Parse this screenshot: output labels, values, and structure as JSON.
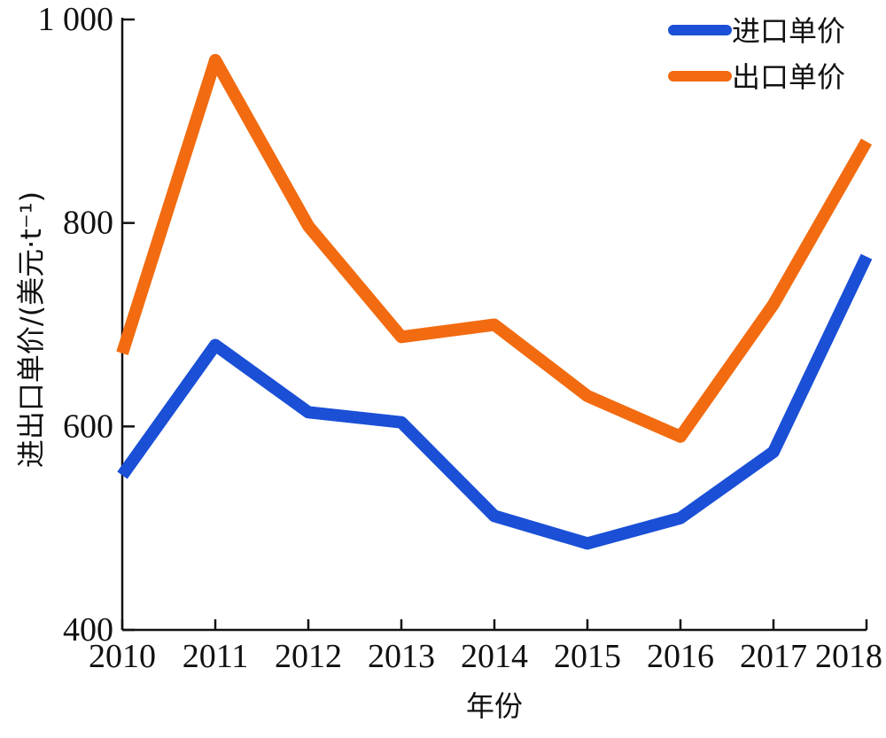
{
  "chart_data": {
    "type": "line",
    "categories": [
      "2010",
      "2011",
      "2012",
      "2013",
      "2014",
      "2015",
      "2016",
      "2017",
      "2018"
    ],
    "series": [
      {
        "name": "进口单价",
        "color": "#1a4fd6",
        "values": [
          552,
          680,
          614,
          604,
          512,
          485,
          510,
          575,
          767
        ]
      },
      {
        "name": "出口单价",
        "color": "#f26b10",
        "values": [
          672,
          960,
          797,
          688,
          700,
          630,
          590,
          720,
          880
        ]
      }
    ],
    "yticks": [
      400,
      600,
      800,
      1000
    ],
    "ytick_labels": [
      "400",
      "600",
      "800",
      "1 000"
    ],
    "ylim": [
      400,
      1000
    ],
    "xlabel": "年份",
    "ylabel": "进出口单价/(美元·t⁻¹)",
    "legend_position": "top-right",
    "grid": false
  }
}
